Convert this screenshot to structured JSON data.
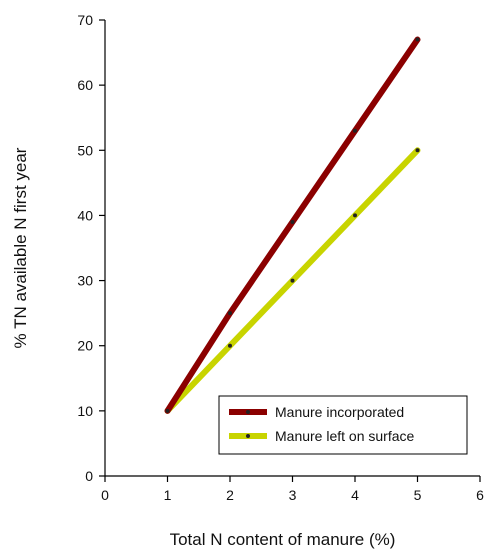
{
  "chart_data": {
    "type": "line",
    "xlabel": "Total N content of manure (%)",
    "ylabel": "% TN available N first year",
    "xlim": [
      0,
      6
    ],
    "ylim": [
      0,
      70
    ],
    "xticks": [
      "0",
      "1",
      "2",
      "3",
      "4",
      "5",
      "6"
    ],
    "yticks": [
      "0",
      "10",
      "20",
      "30",
      "40",
      "50",
      "60",
      "70"
    ],
    "grid": false,
    "legend_position": "bottom-right",
    "series": [
      {
        "name": "Manure incorporated",
        "color": "#8b0000",
        "x": [
          1,
          2,
          3,
          4,
          5
        ],
        "values": [
          10,
          25,
          39,
          53,
          67
        ]
      },
      {
        "name": "Manure left on surface",
        "color": "#c8d400",
        "x": [
          1,
          2,
          3,
          4,
          5
        ],
        "values": [
          10,
          20,
          30,
          40,
          50
        ]
      }
    ]
  }
}
